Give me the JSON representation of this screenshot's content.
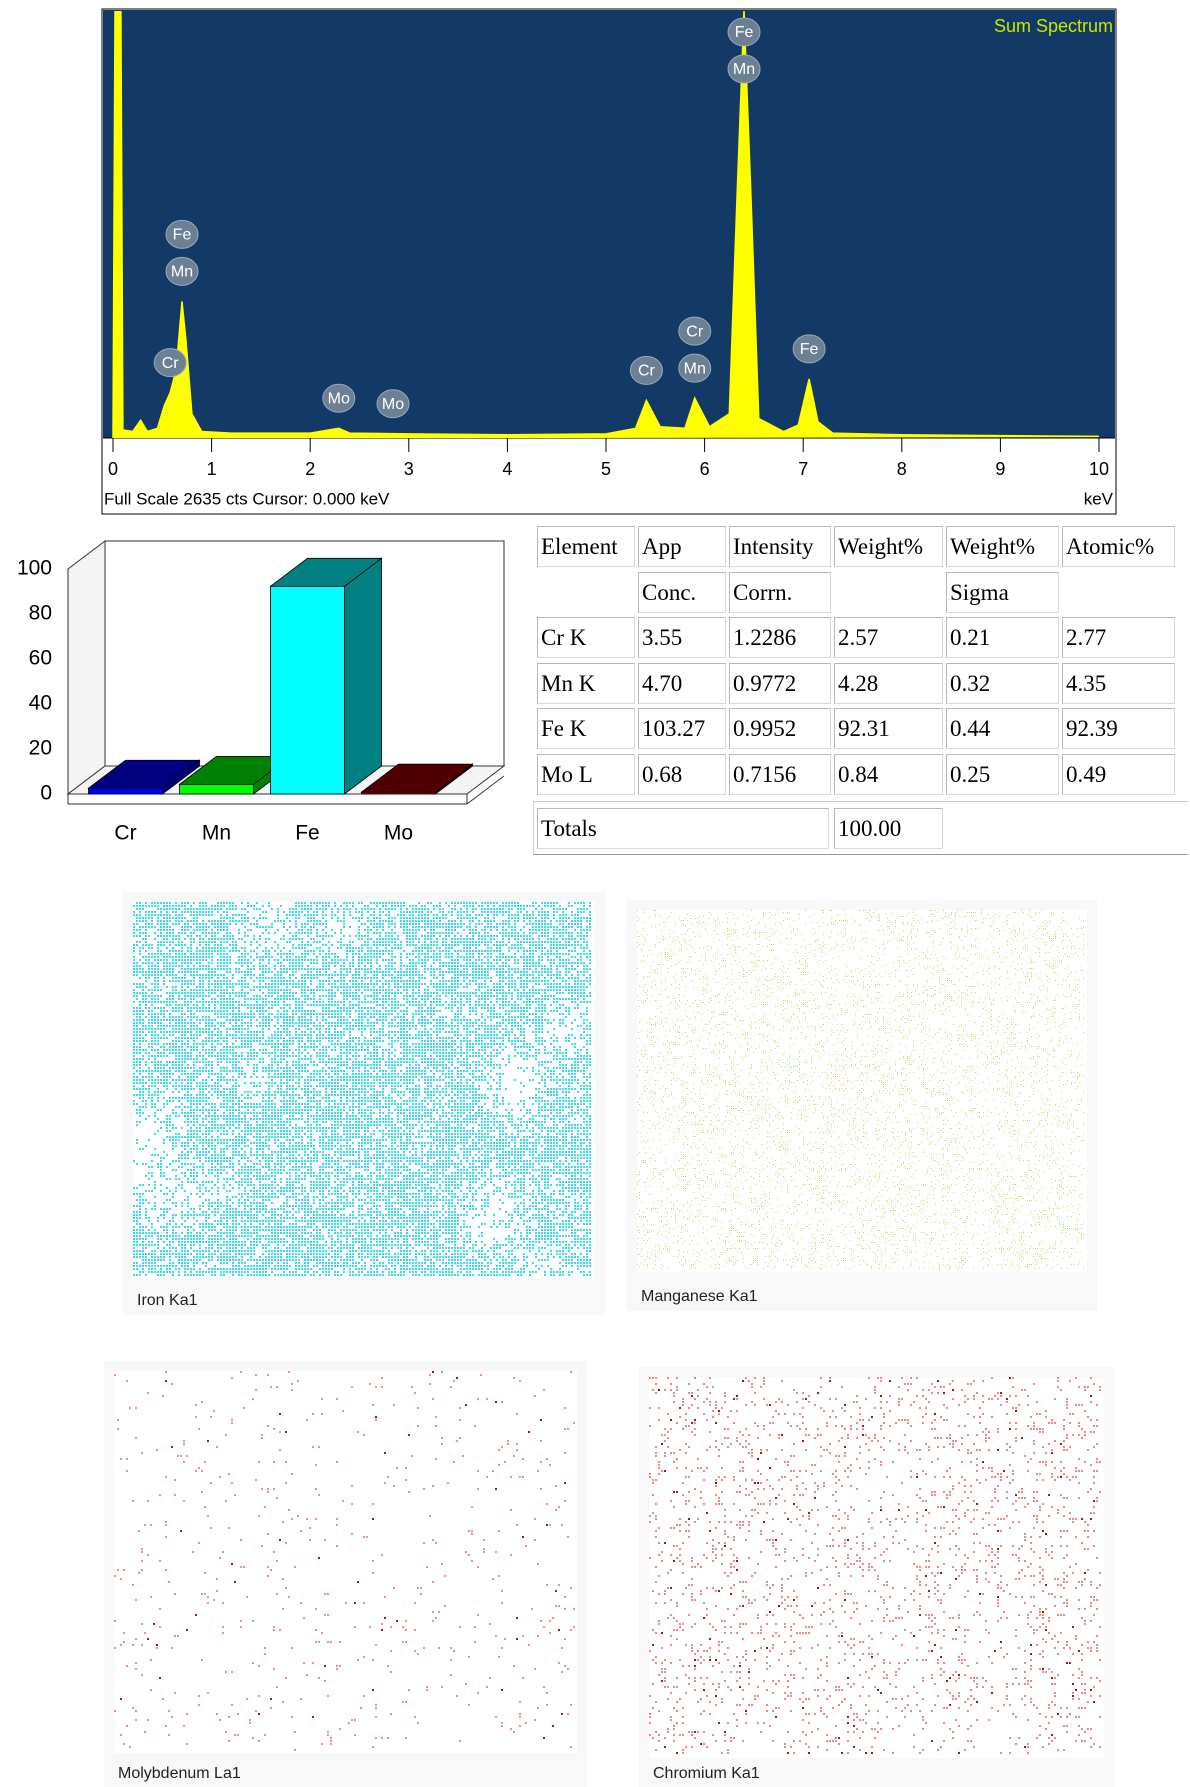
{
  "chart_data": [
    {
      "type": "area",
      "title": "Sum Spectrum",
      "x_label": "keV",
      "footer": "Full Scale  2635 cts  Cursor: 0.000 keV",
      "color": "#ffff00",
      "background": "#133a66",
      "x": [
        0,
        0.02,
        0.08,
        0.1,
        0.2,
        0.28,
        0.35,
        0.45,
        0.52,
        0.58,
        0.64,
        0.7,
        0.74,
        0.8,
        0.9,
        1.2,
        2.0,
        2.29,
        2.4,
        3.0,
        4.0,
        5.0,
        5.3,
        5.41,
        5.55,
        5.8,
        5.9,
        6.05,
        6.25,
        6.33,
        6.4,
        6.47,
        6.55,
        6.8,
        6.95,
        7.06,
        7.15,
        7.3,
        8.0,
        9.0,
        10.0
      ],
      "values": [
        0,
        2635,
        2635,
        50,
        40,
        110,
        40,
        60,
        200,
        280,
        420,
        843,
        600,
        150,
        40,
        30,
        30,
        60,
        30,
        25,
        20,
        25,
        60,
        232,
        70,
        60,
        246,
        70,
        150,
        1500,
        2635,
        1500,
        120,
        40,
        80,
        365,
        100,
        30,
        20,
        15,
        10
      ],
      "xlim": [
        0,
        10
      ],
      "xticks": [
        0,
        1,
        2,
        3,
        4,
        5,
        6,
        7,
        8,
        9,
        10
      ],
      "ylim": [
        0,
        2635
      ],
      "peak_labels": [
        {
          "x": 0.7,
          "labels": [
            "Fe",
            "Mn"
          ]
        },
        {
          "x": 0.58,
          "labels": [
            "Cr"
          ]
        },
        {
          "x": 2.29,
          "labels": [
            "Mo"
          ]
        },
        {
          "x": 2.84,
          "labels": [
            "Mo"
          ]
        },
        {
          "x": 5.41,
          "labels": [
            "Cr"
          ]
        },
        {
          "x": 5.9,
          "labels": [
            "Cr",
            "Mn"
          ]
        },
        {
          "x": 6.4,
          "labels": [
            "Fe",
            "Mn"
          ]
        },
        {
          "x": 7.06,
          "labels": [
            "Fe"
          ]
        }
      ]
    },
    {
      "type": "bar3d",
      "categories": [
        "Cr",
        "Mn",
        "Fe",
        "Mo"
      ],
      "values": [
        2.57,
        4.28,
        92.31,
        0.84
      ],
      "colors": [
        "#0000ff",
        "#00ff00",
        "#00ffff",
        "#a00000"
      ],
      "ylim": [
        0,
        100
      ],
      "yticks": [
        0,
        20,
        40,
        60,
        80,
        100
      ]
    }
  ],
  "table": {
    "header": [
      [
        "Element",
        "App",
        "Intensity",
        "Weight%",
        "Weight%",
        "Atomic%"
      ],
      [
        null,
        "Conc.",
        "Corrn.",
        null,
        "Sigma",
        null
      ]
    ],
    "rows": [
      [
        "Cr K",
        "3.55",
        "1.2286",
        "2.57",
        "0.21",
        "2.77"
      ],
      [
        "Mn K",
        "4.70",
        "0.9772",
        "4.28",
        "0.32",
        "4.35"
      ],
      [
        "Fe K",
        "103.27",
        "0.9952",
        "92.31",
        "0.44",
        "92.39"
      ],
      [
        "Mo L",
        "0.68",
        "0.7156",
        "0.84",
        "0.25",
        "0.49"
      ]
    ],
    "totals": {
      "label": "Totals",
      "weight": "100.00"
    }
  },
  "maps": [
    {
      "caption": "Iron Ka1"
    },
    {
      "caption": "Manganese Ka1"
    },
    {
      "caption": "Molybdenum La1"
    },
    {
      "caption": "Chromium Ka1"
    }
  ]
}
